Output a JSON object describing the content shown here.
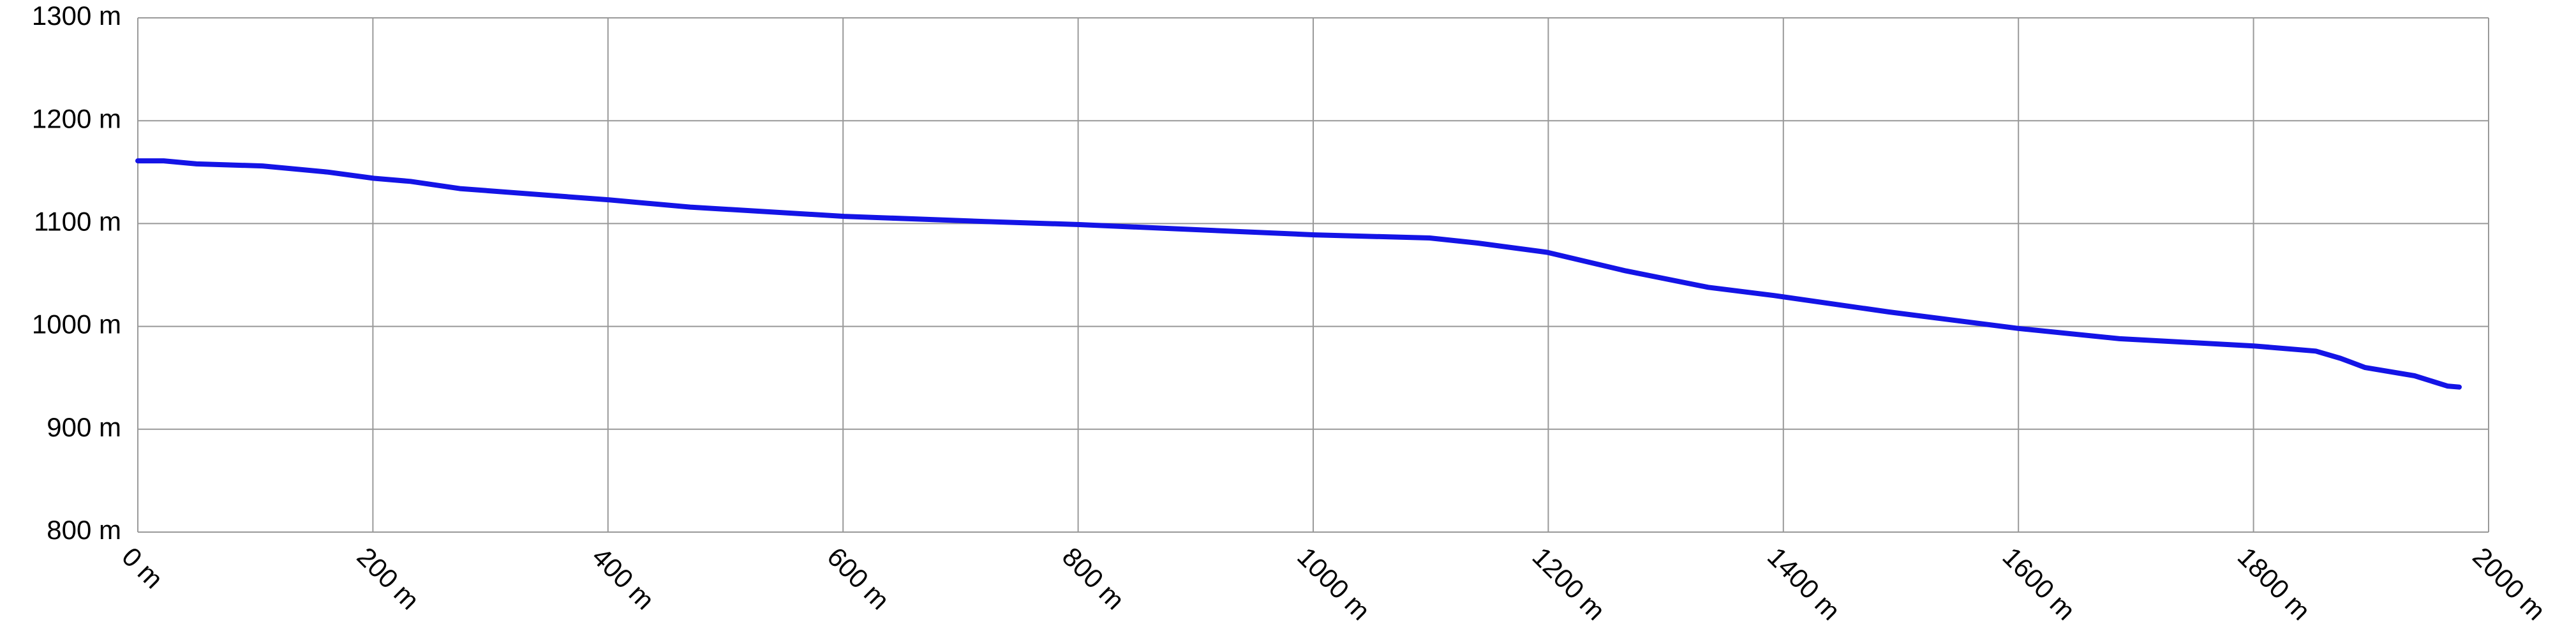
{
  "chart_data": {
    "type": "line",
    "x": [
      0,
      22,
      50,
      106,
      162,
      201,
      232,
      274,
      401,
      470,
      601,
      721,
      801,
      1001,
      1099,
      1140,
      1199,
      1266,
      1336,
      1392,
      1490,
      1600,
      1686,
      1800,
      1853,
      1874,
      1895,
      1937,
      1965,
      1975
    ],
    "values": [
      1161,
      1161,
      1158,
      1156,
      1150,
      1144,
      1141,
      1134,
      1123,
      1116,
      1107,
      1102,
      1099,
      1089,
      1086,
      1081,
      1072,
      1054,
      1038,
      1030,
      1014,
      998,
      988,
      981,
      976,
      969,
      960,
      952,
      942,
      941
    ],
    "color": "#1414e6",
    "xlim": [
      0,
      2000
    ],
    "xticks": [
      {
        "value": 0,
        "label": "0 m"
      },
      {
        "value": 200,
        "label": "200 m"
      },
      {
        "value": 400,
        "label": "400 m"
      },
      {
        "value": 600,
        "label": "600 m"
      },
      {
        "value": 800,
        "label": "800 m"
      },
      {
        "value": 1000,
        "label": "1000 m"
      },
      {
        "value": 1200,
        "label": "1200 m"
      },
      {
        "value": 1400,
        "label": "1400 m"
      },
      {
        "value": 1600,
        "label": "1600 m"
      },
      {
        "value": 1800,
        "label": "1800 m"
      },
      {
        "value": 2000,
        "label": "2000 m"
      }
    ],
    "ylim": [
      800,
      1300
    ],
    "yticks": [
      {
        "value": 800,
        "label": "800 m"
      },
      {
        "value": 900,
        "label": "900 m"
      },
      {
        "value": 1000,
        "label": "1000 m"
      },
      {
        "value": 1100,
        "label": "1100 m"
      },
      {
        "value": 1200,
        "label": "1200 m"
      },
      {
        "value": 1300,
        "label": "1300 m"
      }
    ],
    "grid": true
  }
}
